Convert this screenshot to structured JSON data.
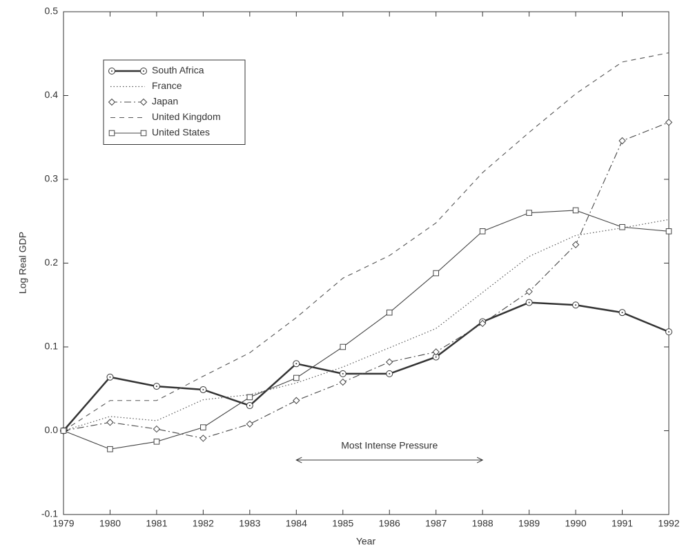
{
  "chart_data": {
    "type": "line",
    "xlabel": "Year",
    "ylabel": "Log Real GDP",
    "x": [
      1979,
      1980,
      1981,
      1982,
      1983,
      1984,
      1985,
      1986,
      1987,
      1988,
      1989,
      1990,
      1991,
      1992
    ],
    "series": [
      {
        "name": "South Africa",
        "color": "#333333",
        "style": "thick-solid",
        "marker": "circle",
        "values": [
          0,
          0.064,
          0.053,
          0.049,
          0.03,
          0.08,
          0.068,
          0.068,
          0.088,
          0.13,
          0.153,
          0.15,
          0.141,
          0.118
        ]
      },
      {
        "name": "France",
        "color": "#555555",
        "style": "dotted",
        "marker": "none",
        "values": [
          0,
          0.017,
          0.012,
          0.037,
          0.043,
          0.057,
          0.076,
          0.099,
          0.122,
          0.165,
          0.208,
          0.233,
          0.242,
          0.252
        ]
      },
      {
        "name": "Japan",
        "color": "#444444",
        "style": "dashdot",
        "marker": "diamond",
        "values": [
          0,
          0.01,
          0.002,
          -0.009,
          0.008,
          0.036,
          0.058,
          0.082,
          0.094,
          0.128,
          0.166,
          0.222,
          0.346,
          0.368
        ]
      },
      {
        "name": "United Kingdom",
        "color": "#555555",
        "style": "dashed",
        "marker": "none",
        "values": [
          0,
          0.036,
          0.036,
          0.065,
          0.093,
          0.135,
          0.182,
          0.209,
          0.248,
          0.308,
          0.356,
          0.402,
          0.44,
          0.451
        ]
      },
      {
        "name": "United States",
        "color": "#444444",
        "style": "solid",
        "marker": "square",
        "values": [
          0,
          -0.022,
          -0.013,
          0.004,
          0.04,
          0.063,
          0.1,
          0.141,
          0.188,
          0.238,
          0.26,
          0.263,
          0.243,
          0.238
        ]
      }
    ],
    "xlim": [
      1979,
      1992
    ],
    "xticks": [
      1979,
      1980,
      1981,
      1982,
      1983,
      1984,
      1985,
      1986,
      1987,
      1988,
      1989,
      1990,
      1991,
      1992
    ],
    "ylim": [
      -0.1,
      0.5
    ],
    "yticks": [
      -0.1,
      {
        "value": 0,
        "label": "0.0"
      },
      0.1,
      0.2,
      0.3,
      0.4,
      0.5
    ],
    "grid": false,
    "legend": "upper left",
    "annotation": {
      "text": "Most Intense Pressure",
      "x": [
        1984,
        1988
      ],
      "y": -0.035
    }
  }
}
